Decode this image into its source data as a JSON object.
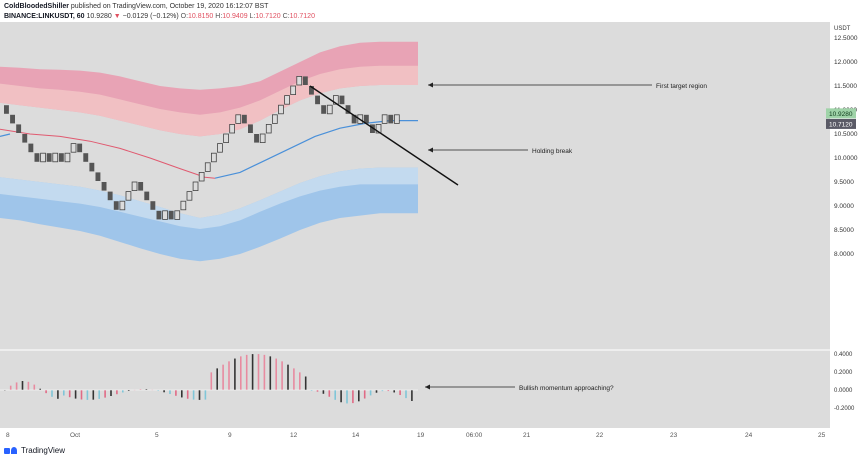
{
  "header": {
    "author": "ColdBloodedShiller",
    "published": "published on TradingView.com, October 19, 2020 16:12:07 BST",
    "symbol": "BINANCE:LINKUSDT, 60",
    "last": "10.9280",
    "change_arrow": "▼",
    "change": "−0.0129 (−0.12%)",
    "o_label": "O:",
    "o_value": "10.8150",
    "h_label": "H:",
    "h_value": "10.9409",
    "l_label": "L:",
    "l_value": "10.7120",
    "c_label": "C:",
    "c_value": "10.7120"
  },
  "footer": {
    "brand": "TradingView",
    "logo_icon": "tradingview-logo-icon"
  },
  "colors": {
    "background": "#dcdcdc",
    "upper_band_outer": "#e8a3b5",
    "upper_band_inner": "#f2c6c6",
    "lower_band_outer": "#9fc5ea",
    "lower_band_inner": "#c7dcef",
    "bullish_brick": "#dcdcdc",
    "bearish_brick": "#555555",
    "basis_line_red": "#e05a70",
    "basis_line_blue": "#4a90d9",
    "trendline": "#111111",
    "last_price_tag": "#9fd3a8",
    "low_price_tag": "#5a5a66"
  },
  "chart_data": {
    "type": "line",
    "title": "BINANCE:LINKUSDT, 60",
    "currency_label": "USDT",
    "price_axis_ticks": [
      "12.5000",
      "12.0000",
      "11.5000",
      "11.0000",
      "10.5000",
      "10.0000",
      "9.5000",
      "9.0000",
      "8.5000",
      "8.0000"
    ],
    "price_tags": [
      "10.9280",
      "10.7120"
    ],
    "oscillator_ticks": [
      "0.4000",
      "0.2000",
      "0.0000",
      "-0.2000"
    ],
    "x_ticks": [
      "8",
      "Oct",
      "5",
      "9",
      "12",
      "14",
      "19",
      "06:00",
      "21",
      "22",
      "23",
      "24",
      "25"
    ],
    "ylim": [
      7.8,
      12.6
    ],
    "series": [
      {
        "values": [
          10.9,
          10.7,
          10.5,
          10.3,
          10.1,
          9.9,
          10.1,
          9.9,
          10.1,
          9.9,
          10.1,
          10.3,
          10.1,
          9.9,
          9.7,
          9.5,
          9.3,
          9.1,
          8.9,
          9.1,
          9.3,
          9.5,
          9.3,
          9.1,
          8.9,
          8.7,
          8.9,
          8.7,
          8.9,
          9.1,
          9.3,
          9.5,
          9.7,
          9.9,
          10.1,
          10.3,
          10.5,
          10.7,
          10.9,
          10.7,
          10.5,
          10.3,
          10.5,
          10.7,
          10.9,
          11.1,
          11.3,
          11.5,
          11.7,
          11.5,
          11.3,
          11.1,
          10.9,
          11.1,
          11.3,
          11.1,
          10.9,
          10.7,
          10.9,
          10.7,
          10.5,
          10.7,
          10.9,
          10.7,
          10.9
        ]
      }
    ],
    "annotations": [
      "First target region",
      "Holding break",
      "Bullish momentum approaching?"
    ]
  }
}
